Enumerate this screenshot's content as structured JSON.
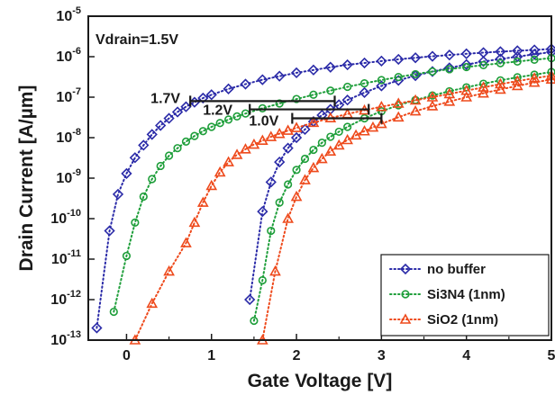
{
  "chart_data": {
    "type": "scatter",
    "xlabel": "Gate Voltage [V]",
    "ylabel": "Drain Current [A/µm]",
    "xlim": [
      -0.45,
      5
    ],
    "ylim_log10": [
      -13,
      -5
    ],
    "y_scale": "log",
    "x_ticks": [
      0,
      1,
      2,
      3,
      4,
      5
    ],
    "y_tick_exponents": [
      -13,
      -12,
      -11,
      -10,
      -9,
      -8,
      -7,
      -6,
      -5
    ],
    "y_tick_base": "10",
    "legend_position": "bottom-right",
    "grid": false,
    "annotations": [
      {
        "text": "Vdrain=1.5V"
      },
      {
        "text": "1.7V",
        "x_from": 0.75,
        "x_to": 2.45,
        "y": 8e-08
      },
      {
        "text": "1.2V",
        "x_from": 1.45,
        "x_to": 2.85,
        "y": 5e-08
      },
      {
        "text": "1.0V",
        "x_from": 1.95,
        "x_to": 3.0,
        "y": 3e-08
      }
    ],
    "series": [
      {
        "name": "no buffer",
        "marker": "diamond",
        "color": "#2b2ba8",
        "sweeps": [
          {
            "x": [
              -0.35,
              -0.2,
              -0.1,
              0.0,
              0.1,
              0.2,
              0.3,
              0.4,
              0.5,
              0.6,
              0.7,
              0.8,
              0.9,
              1.0,
              1.2,
              1.4,
              1.6,
              1.8,
              2.0,
              2.2,
              2.4,
              2.6,
              2.8,
              3.0,
              3.2,
              3.4,
              3.6,
              3.8,
              4.0,
              4.2,
              4.4,
              4.6,
              4.8,
              5.0
            ],
            "y": [
              2e-13,
              5e-11,
              4e-10,
              1.3e-09,
              3.2e-09,
              6.5e-09,
              1.2e-08,
              2e-08,
              3e-08,
              4.3e-08,
              5.8e-08,
              7.5e-08,
              9.5e-08,
              1.15e-07,
              1.6e-07,
              2.1e-07,
              2.7e-07,
              3.3e-07,
              4e-07,
              4.7e-07,
              5.5e-07,
              6.3e-07,
              7e-07,
              7.8e-07,
              8.6e-07,
              9.4e-07,
              1.02e-06,
              1.1e-06,
              1.18e-06,
              1.26e-06,
              1.33e-06,
              1.4e-06,
              1.47e-06,
              1.55e-06
            ]
          },
          {
            "x": [
              1.45,
              1.6,
              1.7,
              1.8,
              1.9,
              2.0,
              2.1,
              2.2,
              2.3,
              2.4,
              2.5,
              2.6,
              2.8,
              3.0,
              3.2,
              3.4,
              3.6,
              3.8,
              4.0,
              4.2,
              4.4,
              4.6,
              4.8,
              5.0
            ],
            "y": [
              1e-12,
              1.5e-10,
              8e-10,
              2.5e-09,
              5.5e-09,
              1e-08,
              1.6e-08,
              2.5e-08,
              3.6e-08,
              5e-08,
              6.5e-08,
              8.5e-08,
              1.3e-07,
              1.9e-07,
              2.6e-07,
              3.4e-07,
              4.3e-07,
              5.3e-07,
              6.4e-07,
              7.6e-07,
              8.8e-07,
              1e-06,
              1.15e-06,
              1.3e-06
            ]
          }
        ]
      },
      {
        "name": "Si3N4 (1nm)",
        "marker": "circle",
        "color": "#1e9e3a",
        "sweeps": [
          {
            "x": [
              -0.15,
              0.0,
              0.1,
              0.2,
              0.3,
              0.4,
              0.5,
              0.6,
              0.7,
              0.8,
              0.9,
              1.0,
              1.1,
              1.2,
              1.3,
              1.4,
              1.6,
              1.8,
              2.0,
              2.2,
              2.4,
              2.6,
              2.8,
              3.0,
              3.2,
              3.4,
              3.6,
              3.8,
              4.0,
              4.2,
              4.4,
              4.6,
              4.8,
              5.0
            ],
            "y": [
              5e-13,
              1.2e-11,
              8e-11,
              3.5e-10,
              9.5e-10,
              2e-09,
              3.6e-09,
              5.5e-09,
              8e-09,
              1.1e-08,
              1.45e-08,
              1.85e-08,
              2.3e-08,
              2.8e-08,
              3.35e-08,
              3.95e-08,
              5.3e-08,
              7e-08,
              9e-08,
              1.15e-07,
              1.45e-07,
              1.8e-07,
              2.2e-07,
              2.65e-07,
              3.15e-07,
              3.7e-07,
              4.3e-07,
              4.9e-07,
              5.55e-07,
              6.2e-07,
              6.9e-07,
              7.6e-07,
              8.4e-07,
              9.2e-07
            ]
          },
          {
            "x": [
              1.5,
              1.6,
              1.7,
              1.8,
              1.9,
              2.0,
              2.1,
              2.2,
              2.3,
              2.4,
              2.5,
              2.6,
              2.8,
              3.0,
              3.2,
              3.4,
              3.6,
              3.8,
              4.0,
              4.2,
              4.4,
              4.6,
              4.8,
              5.0
            ],
            "y": [
              3e-13,
              3e-12,
              5e-11,
              2.5e-10,
              7e-10,
              1.6e-09,
              3e-09,
              5e-09,
              7.5e-09,
              1.05e-08,
              1.4e-08,
              1.85e-08,
              3e-08,
              4.5e-08,
              6.3e-08,
              8.5e-08,
              1.1e-07,
              1.4e-07,
              1.75e-07,
              2.15e-07,
              2.6e-07,
              3.1e-07,
              3.6e-07,
              4.2e-07
            ]
          }
        ]
      },
      {
        "name": "SiO2 (1nm)",
        "marker": "triangle",
        "color": "#ee4a1c",
        "sweeps": [
          {
            "x": [
              0.1,
              0.3,
              0.5,
              0.7,
              0.8,
              0.9,
              1.0,
              1.1,
              1.2,
              1.3,
              1.4,
              1.5,
              1.6,
              1.7,
              1.8,
              1.9,
              2.0,
              2.2,
              2.4,
              2.6,
              2.8,
              3.0,
              3.2,
              3.4,
              3.6,
              3.8,
              4.0,
              4.2,
              4.4,
              4.6,
              4.8,
              5.0
            ],
            "y": [
              1e-13,
              8e-13,
              5e-12,
              2.5e-11,
              8e-11,
              2.5e-10,
              6.5e-10,
              1.4e-09,
              2.5e-09,
              3.8e-09,
              5.2e-09,
              6.8e-09,
              8.5e-09,
              1.05e-08,
              1.25e-08,
              1.5e-08,
              1.75e-08,
              2.35e-08,
              3.05e-08,
              3.85e-08,
              4.75e-08,
              5.8e-08,
              7e-08,
              8.4e-08,
              1e-07,
              1.2e-07,
              1.45e-07,
              1.75e-07,
              2.1e-07,
              2.5e-07,
              2.95e-07,
              3.4e-07
            ]
          },
          {
            "x": [
              1.6,
              1.75,
              1.9,
              2.0,
              2.1,
              2.2,
              2.3,
              2.4,
              2.5,
              2.6,
              2.7,
              2.8,
              2.9,
              3.0,
              3.2,
              3.4,
              3.6,
              3.8,
              4.0,
              4.2,
              4.4,
              4.6,
              4.8,
              5.0
            ],
            "y": [
              1e-13,
              5e-12,
              1e-10,
              3.5e-10,
              9e-10,
              1.8e-09,
              3e-09,
              4.6e-09,
              6.5e-09,
              8.8e-09,
              1.15e-08,
              1.45e-08,
              1.8e-08,
              2.2e-08,
              3.2e-08,
              4.5e-08,
              6e-08,
              7.8e-08,
              1e-07,
              1.25e-07,
              1.55e-07,
              1.9e-07,
              2.3e-07,
              2.75e-07
            ]
          }
        ]
      }
    ]
  }
}
